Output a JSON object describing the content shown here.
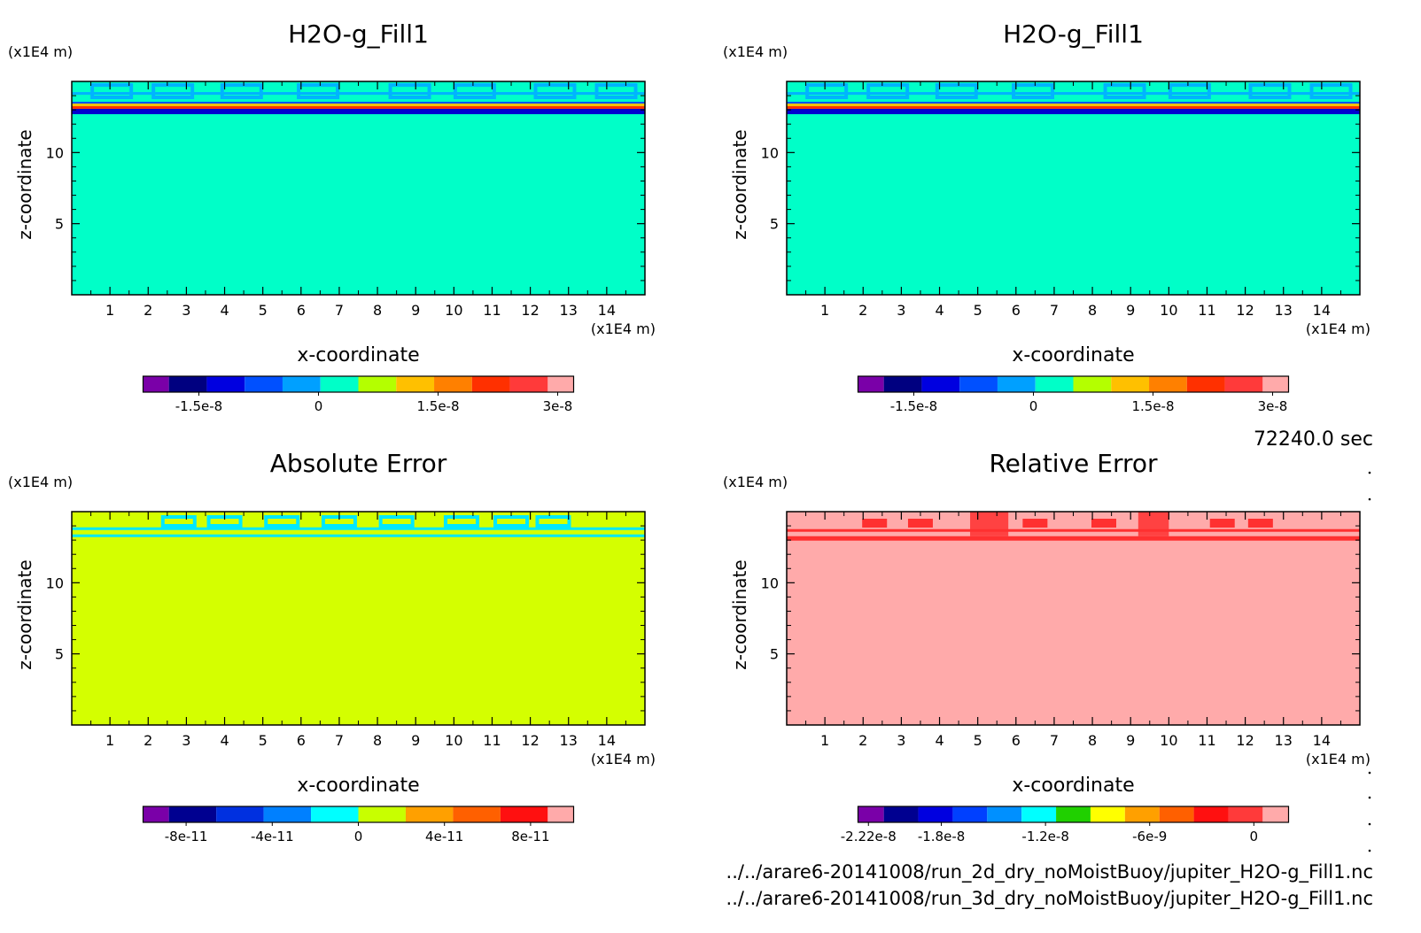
{
  "chart_data": [
    {
      "type": "heatmap",
      "title": "H2O-g_Fill1",
      "xlabel": "x-coordinate",
      "ylabel": "z-coordinate",
      "x_unit": "(x1E4 m)",
      "y_unit": "(x1E4 m)",
      "xlim": [
        0,
        15
      ],
      "ylim": [
        0,
        15
      ],
      "x_ticks": [
        "1",
        "2",
        "3",
        "4",
        "5",
        "6",
        "7",
        "8",
        "9",
        "10",
        "11",
        "12",
        "13",
        "14"
      ],
      "y_ticks": [
        "5",
        "10"
      ],
      "field": {
        "background": 0,
        "layer_z": [
          12.7,
          14.7
        ]
      },
      "colorbar": {
        "levels": [
          -2.1e-08,
          -1.8e-08,
          -1.5e-08,
          -1.2e-08,
          -9e-09,
          -6e-09,
          -3e-09,
          0,
          3e-09,
          6e-09,
          9e-09,
          1.2e-08,
          1.5e-08,
          1.8e-08,
          2.1e-08,
          2.4e-08,
          2.7e-08,
          3e-08,
          3.3e-08
        ],
        "colors": [
          "#7a00a8",
          "#000080",
          "#0000e0",
          "#0050ff",
          "#00a0ff",
          "#00ffc8",
          "#b4ff00",
          "#ffc000",
          "#ff8000",
          "#ff3000",
          "#ff3a3a",
          "#ffaaaa"
        ],
        "bounds": [
          -2.2e-08,
          3.2e-08
        ],
        "tick_values": [
          -1.5e-08,
          0,
          1.5e-08,
          3e-08
        ],
        "tick_labels": [
          "-1.5e-8",
          "0",
          "1.5e-8",
          "3e-8"
        ]
      }
    },
    {
      "type": "heatmap",
      "title": "H2O-g_Fill1",
      "xlabel": "x-coordinate",
      "ylabel": "z-coordinate",
      "x_unit": "(x1E4 m)",
      "y_unit": "(x1E4 m)",
      "xlim": [
        0,
        15
      ],
      "ylim": [
        0,
        15
      ],
      "x_ticks": [
        "1",
        "2",
        "3",
        "4",
        "5",
        "6",
        "7",
        "8",
        "9",
        "10",
        "11",
        "12",
        "13",
        "14"
      ],
      "y_ticks": [
        "5",
        "10"
      ],
      "field": {
        "background": 0,
        "layer_z": [
          12.7,
          14.7
        ]
      },
      "colorbar": {
        "colors": [
          "#7a00a8",
          "#000080",
          "#0000e0",
          "#0050ff",
          "#00a0ff",
          "#00ffc8",
          "#b4ff00",
          "#ffc000",
          "#ff8000",
          "#ff3000",
          "#ff3a3a",
          "#ffaaaa"
        ],
        "bounds": [
          -2.2e-08,
          3.2e-08
        ],
        "tick_values": [
          -1.5e-08,
          0,
          1.5e-08,
          3e-08
        ],
        "tick_labels": [
          "-1.5e-8",
          "0",
          "1.5e-8",
          "3e-8"
        ]
      }
    },
    {
      "type": "heatmap",
      "title": "Absolute Error",
      "xlabel": "x-coordinate",
      "ylabel": "z-coordinate",
      "x_unit": "(x1E4 m)",
      "y_unit": "(x1E4 m)",
      "xlim": [
        0,
        15
      ],
      "ylim": [
        0,
        15
      ],
      "x_ticks": [
        "1",
        "2",
        "3",
        "4",
        "5",
        "6",
        "7",
        "8",
        "9",
        "10",
        "11",
        "12",
        "13",
        "14"
      ],
      "y_ticks": [
        "5",
        "10"
      ],
      "field": {
        "background": 2e-11,
        "layer_z": [
          12.9,
          14.7
        ]
      },
      "colorbar": {
        "colors": [
          "#7a00a8",
          "#000090",
          "#0030e0",
          "#0080ff",
          "#00ffff",
          "#c8ff00",
          "#ffa000",
          "#ff6000",
          "#ff1010",
          "#ffaaaa"
        ],
        "bounds": [
          -1e-10,
          1e-10
        ],
        "tick_values": [
          -8e-11,
          -4e-11,
          0,
          4e-11,
          8e-11
        ],
        "tick_labels": [
          "-8e-11",
          "-4e-11",
          "0",
          "4e-11",
          "8e-11"
        ]
      }
    },
    {
      "type": "heatmap",
      "title": "Relative Error",
      "xlabel": "x-coordinate",
      "ylabel": "z-coordinate",
      "x_unit": "(x1E4 m)",
      "y_unit": "(x1E4 m)",
      "xlim": [
        0,
        15
      ],
      "ylim": [
        0,
        15
      ],
      "x_ticks": [
        "1",
        "2",
        "3",
        "4",
        "5",
        "6",
        "7",
        "8",
        "9",
        "10",
        "11",
        "12",
        "13",
        "14"
      ],
      "y_ticks": [
        "5",
        "10"
      ],
      "field": {
        "background": 0,
        "layer_z": [
          12.9,
          15
        ]
      },
      "colorbar": {
        "colors": [
          "#7a00a8",
          "#000090",
          "#0000e0",
          "#0040ff",
          "#0090ff",
          "#00ffff",
          "#20d000",
          "#ffff00",
          "#ffa000",
          "#ff6000",
          "#ff1010",
          "#ff3a3a",
          "#ffaaaa"
        ],
        "bounds": [
          -2.28e-08,
          2e-09
        ],
        "tick_values": [
          -2.22e-08,
          -1.8e-08,
          -1.2e-08,
          -6e-09,
          0
        ],
        "tick_labels": [
          "-2.22e-8",
          "-1.8e-8",
          "-1.2e-8",
          "-6e-9",
          "0"
        ]
      }
    }
  ],
  "time_label": "72240.0 sec",
  "files": [
    "../../arare6-20141008/run_2d_dry_noMoistBuoy/jupiter_H2O-g_Fill1.nc",
    "../../arare6-20141008/run_3d_dry_noMoistBuoy/jupiter_H2O-g_Fill1.nc"
  ],
  "colors": {
    "field_top": "#00ffc8",
    "field_abs": "#d4ff00",
    "field_rel": "#ffaaaa",
    "cloud_top": "#00b4ff",
    "cloud_abs": "#00e8ff",
    "cloud_rel": "#ff3030"
  }
}
